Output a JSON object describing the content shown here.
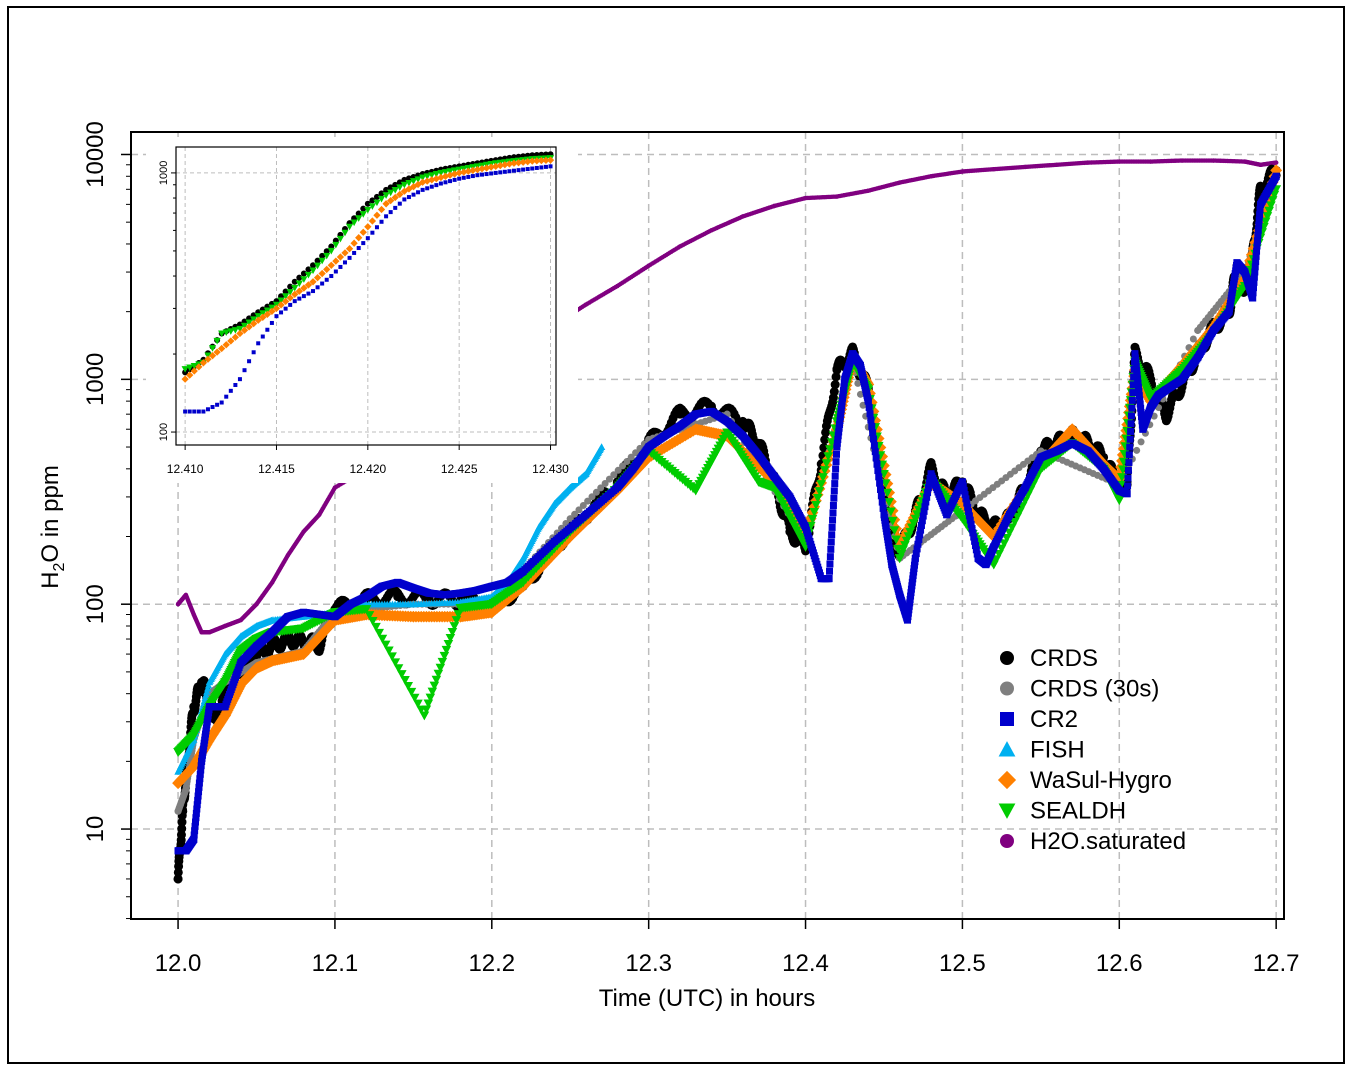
{
  "chart_data": {
    "type": "scatter",
    "xlabel": "Time (UTC) in hours",
    "ylabel": "H2O in ppm",
    "ylabel_parts": {
      "pre": "H",
      "sub": "2",
      "post": "O in ppm"
    },
    "xlim": [
      11.97,
      12.705
    ],
    "ylim_log10": [
      0.6,
      4.1
    ],
    "y_scale": "log",
    "grid": true,
    "legend_position": "bottom-right",
    "x_ticks": [
      12.0,
      12.1,
      12.2,
      12.3,
      12.4,
      12.5,
      12.6,
      12.7
    ],
    "x_tick_labels": [
      "12.0",
      "12.1",
      "12.2",
      "12.3",
      "12.4",
      "12.5",
      "12.6",
      "12.7"
    ],
    "y_ticks": [
      10,
      100,
      1000,
      10000
    ],
    "y_tick_labels": [
      "10",
      "100",
      "1000",
      "10000"
    ],
    "series": [
      {
        "name": "CRDS",
        "color": "#000000",
        "marker": "circle",
        "x": [
          12.0,
          12.003,
          12.006,
          12.01,
          12.015,
          12.02,
          12.025,
          12.03,
          12.04,
          12.05,
          12.06,
          12.07,
          12.08,
          12.09,
          12.1,
          12.12,
          12.14,
          12.16,
          12.18,
          12.2,
          12.22,
          12.24,
          12.26,
          12.28,
          12.3,
          12.32,
          12.34,
          12.36,
          12.37,
          12.38,
          12.39,
          12.4,
          12.41,
          12.42,
          12.43,
          12.44,
          12.45,
          12.46,
          12.47,
          12.48,
          12.49,
          12.5,
          12.51,
          12.52,
          12.53,
          12.54,
          12.55,
          12.56,
          12.57,
          12.58,
          12.59,
          12.6,
          12.605,
          12.61,
          12.62,
          12.63,
          12.64,
          12.65,
          12.66,
          12.67,
          12.675,
          12.68,
          12.685,
          12.69,
          12.7
        ],
        "y": [
          6,
          12,
          20,
          35,
          45,
          38,
          30,
          42,
          52,
          60,
          65,
          70,
          68,
          66,
          95,
          105,
          108,
          106,
          104,
          98,
          120,
          180,
          250,
          350,
          520,
          700,
          760,
          650,
          520,
          350,
          210,
          180,
          420,
          1100,
          1300,
          900,
          300,
          170,
          250,
          400,
          300,
          350,
          250,
          220,
          240,
          330,
          480,
          520,
          560,
          520,
          450,
          330,
          340,
          1300,
          1000,
          700,
          950,
          1300,
          1700,
          2000,
          3200,
          2500,
          3500,
          7000,
          8500
        ]
      },
      {
        "name": "CRDS (30s)",
        "color": "#7f7f7f",
        "marker": "circle",
        "x": [
          12.0,
          12.005,
          12.01,
          12.02,
          12.03,
          12.05,
          12.08,
          12.1,
          12.15,
          12.2,
          12.25,
          12.3,
          12.35,
          12.4,
          12.43,
          12.46,
          12.5,
          12.55,
          12.6,
          12.65,
          12.68,
          12.7
        ],
        "y": [
          12,
          15,
          25,
          40,
          45,
          55,
          62,
          92,
          100,
          100,
          240,
          540,
          700,
          190,
          1200,
          160,
          260,
          480,
          340,
          1650,
          3000,
          8000
        ]
      },
      {
        "name": "CR2",
        "color": "#0000cc",
        "marker": "square",
        "x": [
          12.0,
          12.005,
          12.01,
          12.015,
          12.02,
          12.03,
          12.04,
          12.05,
          12.06,
          12.07,
          12.08,
          12.09,
          12.1,
          12.11,
          12.12,
          12.13,
          12.14,
          12.15,
          12.16,
          12.17,
          12.18,
          12.19,
          12.2,
          12.21,
          12.22,
          12.24,
          12.26,
          12.28,
          12.29,
          12.3,
          12.31,
          12.32,
          12.33,
          12.34,
          12.35,
          12.36,
          12.37,
          12.38,
          12.39,
          12.4,
          12.41,
          12.415,
          12.42,
          12.425,
          12.43,
          12.435,
          12.44,
          12.45,
          12.455,
          12.46,
          12.465,
          12.47,
          12.48,
          12.49,
          12.5,
          12.51,
          12.515,
          12.52,
          12.53,
          12.54,
          12.55,
          12.56,
          12.57,
          12.58,
          12.59,
          12.6,
          12.605,
          12.61,
          12.615,
          12.62,
          12.625,
          12.63,
          12.64,
          12.65,
          12.66,
          12.67,
          12.675,
          12.68,
          12.685,
          12.69,
          12.7
        ],
        "y": [
          8,
          8,
          9,
          20,
          35,
          35,
          55,
          65,
          75,
          88,
          92,
          90,
          88,
          100,
          108,
          120,
          125,
          118,
          112,
          110,
          112,
          115,
          120,
          125,
          140,
          190,
          250,
          330,
          400,
          500,
          560,
          620,
          700,
          720,
          650,
          560,
          460,
          370,
          300,
          220,
          130,
          130,
          500,
          1000,
          1300,
          1150,
          800,
          250,
          150,
          110,
          85,
          160,
          380,
          250,
          350,
          160,
          150,
          180,
          250,
          330,
          450,
          480,
          520,
          480,
          400,
          320,
          310,
          1300,
          600,
          750,
          850,
          900,
          1000,
          1250,
          1650,
          2000,
          3300,
          3000,
          2300,
          6000,
          8000
        ]
      },
      {
        "name": "FISH",
        "color": "#00b0f0",
        "marker": "triangle-up",
        "x": [
          12.0,
          12.01,
          12.02,
          12.03,
          12.04,
          12.05,
          12.06,
          12.08,
          12.1,
          12.12,
          12.15,
          12.18,
          12.2,
          12.21,
          12.22,
          12.23,
          12.24,
          12.25,
          12.26,
          12.27
        ],
        "y": [
          18,
          25,
          45,
          60,
          72,
          80,
          85,
          88,
          92,
          100,
          100,
          102,
          108,
          125,
          160,
          220,
          280,
          330,
          380,
          500
        ]
      },
      {
        "name": "WaSul-Hygro",
        "color": "#ff8000",
        "marker": "diamond",
        "x": [
          12.0,
          12.01,
          12.02,
          12.03,
          12.04,
          12.05,
          12.06,
          12.08,
          12.1,
          12.12,
          12.15,
          12.18,
          12.2,
          12.22,
          12.25,
          12.28,
          12.3,
          12.33,
          12.35,
          12.38,
          12.4,
          12.42,
          12.43,
          12.44,
          12.46,
          12.48,
          12.5,
          12.52,
          12.55,
          12.57,
          12.59,
          12.6,
          12.61,
          12.62,
          12.64,
          12.66,
          12.68,
          12.7
        ],
        "y": [
          16,
          19,
          25,
          32,
          44,
          52,
          56,
          60,
          85,
          90,
          88,
          88,
          92,
          120,
          200,
          320,
          450,
          600,
          560,
          350,
          200,
          600,
          1250,
          950,
          180,
          350,
          280,
          200,
          420,
          600,
          420,
          360,
          1100,
          800,
          1150,
          1700,
          2800,
          8500
        ]
      },
      {
        "name": "SEALDH",
        "color": "#00cc00",
        "marker": "triangle-down",
        "x": [
          12.0,
          12.01,
          12.02,
          12.03,
          12.04,
          12.05,
          12.06,
          12.08,
          12.1,
          12.12,
          12.157,
          12.18,
          12.2,
          12.22,
          12.25,
          12.28,
          12.3,
          12.33,
          12.35,
          12.37,
          12.38,
          12.4,
          12.42,
          12.43,
          12.44,
          12.46,
          12.48,
          12.5,
          12.52,
          12.55,
          12.57,
          12.59,
          12.6,
          12.61,
          12.62,
          12.64,
          12.66,
          12.68,
          12.7
        ],
        "y": [
          22,
          26,
          35,
          45,
          62,
          70,
          75,
          78,
          92,
          95,
          32,
          96,
          100,
          125,
          210,
          330,
          480,
          320,
          580,
          350,
          330,
          180,
          650,
          1200,
          900,
          160,
          360,
          240,
          150,
          400,
          520,
          400,
          290,
          1200,
          820,
          1100,
          1600,
          2600,
          7000
        ]
      },
      {
        "name": "H2O.saturated",
        "color": "#800080",
        "marker": "circle",
        "x": [
          12.0,
          12.005,
          12.01,
          12.015,
          12.02,
          12.03,
          12.04,
          12.05,
          12.06,
          12.07,
          12.08,
          12.09,
          12.1,
          12.12,
          12.14,
          12.16,
          12.18,
          12.2,
          12.22,
          12.24,
          12.26,
          12.28,
          12.3,
          12.32,
          12.34,
          12.36,
          12.38,
          12.4,
          12.42,
          12.44,
          12.46,
          12.48,
          12.5,
          12.52,
          12.54,
          12.56,
          12.58,
          12.6,
          12.62,
          12.64,
          12.66,
          12.68,
          12.69,
          12.7
        ],
        "y": [
          100,
          110,
          90,
          75,
          75,
          80,
          85,
          100,
          125,
          165,
          210,
          250,
          330,
          400,
          500,
          640,
          820,
          1050,
          1350,
          1750,
          2150,
          2600,
          3200,
          3900,
          4600,
          5300,
          5900,
          6400,
          6500,
          6900,
          7500,
          8000,
          8400,
          8600,
          8800,
          9000,
          9200,
          9300,
          9300,
          9400,
          9400,
          9300,
          9000,
          9200
        ]
      }
    ],
    "inset": {
      "xlim": [
        12.4095,
        12.4303
      ],
      "ylim_log10": [
        1.95,
        3.1
      ],
      "x_ticks": [
        12.41,
        12.415,
        12.42,
        12.425,
        12.43
      ],
      "x_tick_labels": [
        "12.410",
        "12.415",
        "12.420",
        "12.425",
        "12.430"
      ],
      "y_ticks": [
        100,
        1000
      ],
      "y_tick_labels": [
        "100",
        "1000"
      ],
      "series": [
        {
          "name": "CRDS",
          "color": "#000000",
          "marker": "circle",
          "x": [
            12.41,
            12.411,
            12.412,
            12.413,
            12.414,
            12.415,
            12.416,
            12.417,
            12.418,
            12.419,
            12.42,
            12.421,
            12.422,
            12.423,
            12.424,
            12.425,
            12.426,
            12.427,
            12.428,
            12.429,
            12.43
          ],
          "y": [
            170,
            190,
            240,
            260,
            290,
            320,
            380,
            440,
            520,
            640,
            760,
            860,
            940,
            990,
            1030,
            1060,
            1090,
            1120,
            1150,
            1170,
            1180
          ]
        },
        {
          "name": "SEALDH",
          "color": "#00cc00",
          "marker": "triangle-down",
          "x": [
            12.41,
            12.411,
            12.412,
            12.413,
            12.414,
            12.415,
            12.416,
            12.417,
            12.418,
            12.419,
            12.42,
            12.421,
            12.422,
            12.423,
            12.424,
            12.425,
            12.426,
            12.427,
            12.428,
            12.429,
            12.43
          ],
          "y": [
            175,
            185,
            240,
            250,
            280,
            310,
            360,
            420,
            500,
            620,
            720,
            820,
            900,
            960,
            1000,
            1030,
            1060,
            1090,
            1110,
            1130,
            1140
          ]
        },
        {
          "name": "WaSul-Hygro",
          "color": "#ff8000",
          "marker": "diamond",
          "x": [
            12.41,
            12.411,
            12.412,
            12.413,
            12.414,
            12.415,
            12.416,
            12.417,
            12.418,
            12.419,
            12.42,
            12.421,
            12.422,
            12.423,
            12.424,
            12.425,
            12.426,
            12.427,
            12.428,
            12.429,
            12.43
          ],
          "y": [
            160,
            185,
            210,
            240,
            270,
            300,
            340,
            380,
            440,
            510,
            620,
            760,
            850,
            920,
            960,
            1000,
            1030,
            1060,
            1090,
            1110,
            1120
          ]
        },
        {
          "name": "CR2",
          "color": "#0000cc",
          "marker": "square",
          "x": [
            12.41,
            12.411,
            12.412,
            12.413,
            12.414,
            12.415,
            12.416,
            12.417,
            12.418,
            12.419,
            12.42,
            12.421,
            12.422,
            12.423,
            12.424,
            12.425,
            12.426,
            12.427,
            12.428,
            12.429,
            12.43
          ],
          "y": [
            120,
            120,
            130,
            160,
            220,
            280,
            320,
            350,
            400,
            470,
            560,
            680,
            790,
            860,
            910,
            950,
            980,
            1000,
            1020,
            1040,
            1060
          ]
        }
      ]
    }
  }
}
